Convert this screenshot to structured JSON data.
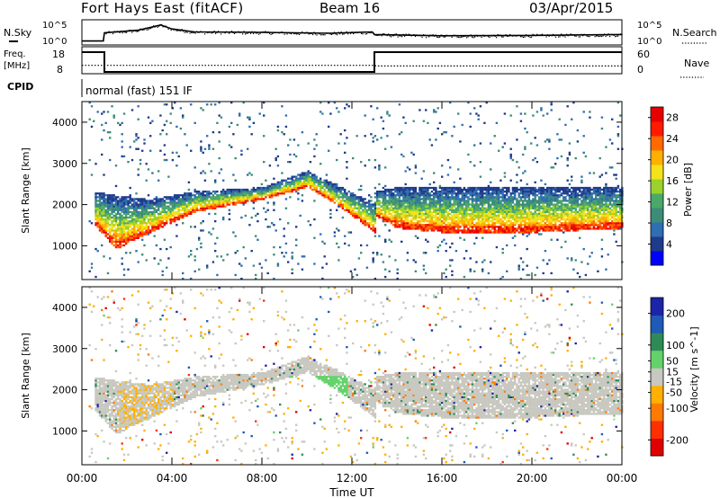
{
  "header": {
    "station": "Fort Hays East (fitACF)",
    "beam": "Beam 16",
    "date": "03/Apr/2015"
  },
  "top_panels": {
    "nsky_label": "N.Sky",
    "nsky_ticks": [
      "10^5",
      "10^0"
    ],
    "nsearch_label": "N.Search",
    "nsearch_ticks": [
      "10^5",
      "10^0"
    ],
    "freq_label": "Freq.",
    "freq_unit": "[MHz]",
    "freq_ticks": [
      "18",
      "8"
    ],
    "nave_label": "Nave",
    "nave_ticks": [
      "60",
      "0"
    ],
    "cpid_label": "CPID",
    "cpid_text": "normal (fast) 151 IF"
  },
  "colors": {
    "power_scale": [
      "#0000ff",
      "#1e3a8a",
      "#2f6eb0",
      "#3c8c78",
      "#4aa86a",
      "#9bd12b",
      "#f4e21a",
      "#ffb000",
      "#ff6a00",
      "#ff1a00",
      "#e60000"
    ],
    "velocity_scale": [
      "#1c24a8",
      "#1f5ab8",
      "#2e8b57",
      "#63d26b",
      "#c8c8c0",
      "#ffb000",
      "#ff7a00",
      "#ff3000",
      "#e00000"
    ]
  },
  "chart_data": [
    {
      "type": "line",
      "panel": "nsky-nsearch",
      "ylabel_left": "N.Sky",
      "ylabel_right": "N.Search",
      "yticks": [
        "10^0",
        "10^5"
      ],
      "xrange_hours": [
        0,
        24
      ],
      "series": [
        {
          "name": "N.Sky",
          "x": [
            0,
            0.95,
            1.0,
            2.5,
            3.5,
            4.0,
            5.0,
            8.0,
            11.0,
            12.9,
            13.0,
            16.0,
            20.0,
            24.0
          ],
          "values": [
            0.5,
            0.5,
            2.4,
            3.0,
            4.2,
            3.3,
            2.6,
            2.5,
            2.3,
            2.6,
            2.0,
            1.7,
            1.8,
            2.0
          ]
        }
      ]
    },
    {
      "type": "line",
      "panel": "freq-nave",
      "ylabel_left": "Freq. [MHz]",
      "ylabel_right": "Nave",
      "yticks_left": [
        8,
        18
      ],
      "yticks_right": [
        0,
        60
      ],
      "xrange_hours": [
        0,
        24
      ],
      "series": [
        {
          "name": "Freq.",
          "x": [
            0,
            1.0,
            1.0,
            13.0,
            13.0,
            24.0
          ],
          "values": [
            18,
            18,
            8,
            8,
            18,
            18
          ]
        },
        {
          "name": "Nave",
          "x": [
            0,
            1.0,
            1.1,
            13.0,
            13.1,
            24.0
          ],
          "values": [
            20,
            20,
            20,
            20,
            18,
            18
          ]
        }
      ]
    },
    {
      "type": "heatmap",
      "panel": "power",
      "ylabel": "Slant Range [km]",
      "yticks": [
        1000,
        2000,
        3000,
        4000
      ],
      "ylim": [
        180,
        4500
      ],
      "xrange_hours": [
        0,
        24
      ],
      "colorbar_label": "Power [dB]",
      "colorbar_ticks": [
        4,
        8,
        12,
        16,
        20,
        24,
        28
      ],
      "colorbar_range": [
        0,
        30
      ],
      "echo_bands": [
        {
          "x": [
            0.5,
            1.5,
            3.0,
            5.0,
            8.0,
            10.0,
            11.5,
            13.0
          ],
          "range_low": [
            1500,
            900,
            1300,
            1800,
            2100,
            2400,
            1900,
            1300
          ],
          "range_high": [
            2300,
            2200,
            2100,
            2300,
            2400,
            2800,
            2400,
            2000
          ]
        },
        {
          "x": [
            13.0,
            14.0,
            16.0,
            18.0,
            20.0,
            22.0,
            24.0
          ],
          "range_low": [
            1700,
            1400,
            1300,
            1300,
            1300,
            1350,
            1400
          ],
          "range_high": [
            2300,
            2400,
            2400,
            2400,
            2400,
            2400,
            2400
          ]
        }
      ]
    },
    {
      "type": "heatmap",
      "panel": "velocity",
      "ylabel": "Slant Range [km]",
      "yticks": [
        1000,
        2000,
        3000,
        4000
      ],
      "ylim": [
        180,
        4500
      ],
      "xrange_hours": [
        0,
        24
      ],
      "xlabel": "Time UT",
      "xtick_labels": [
        "00:00",
        "04:00",
        "08:00",
        "12:00",
        "16:00",
        "20:00",
        "00:00"
      ],
      "colorbar_label": "Velocity [m s^-1]",
      "colorbar_ticks": [
        200,
        100,
        50,
        15,
        -15,
        -50,
        -100,
        -200
      ],
      "colorbar_range": [
        -250,
        250
      ]
    }
  ]
}
